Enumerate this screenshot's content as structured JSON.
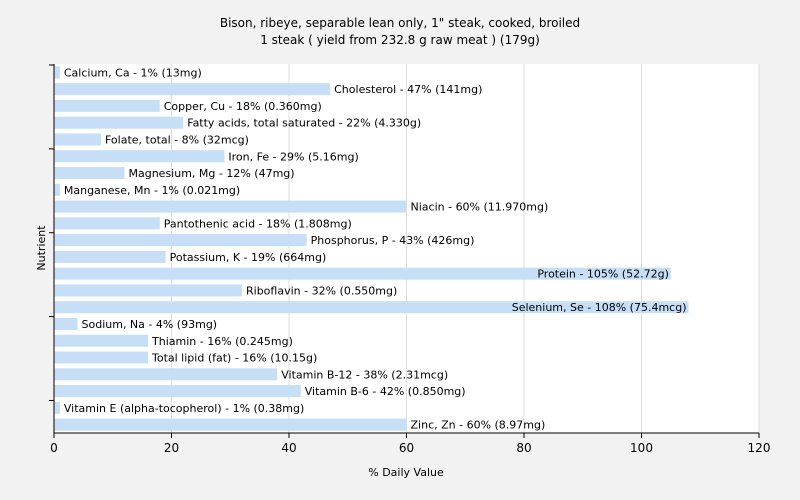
{
  "chart_data": {
    "type": "bar",
    "orientation": "horizontal",
    "title": "Bison, ribeye, separable lean only, 1\" steak, cooked, broiled",
    "subtitle": "1 steak ( yield from 232.8 g raw meat ) (179g)",
    "xlabel": "% Daily Value",
    "ylabel": "Nutrient",
    "xlim": [
      0,
      120
    ],
    "xticks": [
      "0",
      "20",
      "40",
      "60",
      "80",
      "100",
      "120"
    ],
    "grid": true,
    "bar_color": "#c6dff7",
    "categories": [
      "Calcium, Ca",
      "Cholesterol",
      "Copper, Cu",
      "Fatty acids, total saturated",
      "Folate, total",
      "Iron, Fe",
      "Magnesium, Mg",
      "Manganese, Mn",
      "Niacin",
      "Pantothenic acid",
      "Phosphorus, P",
      "Potassium, K",
      "Protein",
      "Riboflavin",
      "Selenium, Se",
      "Sodium, Na",
      "Thiamin",
      "Total lipid (fat)",
      "Vitamin B-12",
      "Vitamin B-6",
      "Vitamin E (alpha-tocopherol)",
      "Zinc, Zn"
    ],
    "values": [
      1,
      47,
      18,
      22,
      8,
      29,
      12,
      1,
      60,
      18,
      43,
      19,
      105,
      32,
      108,
      4,
      16,
      16,
      38,
      42,
      1,
      60
    ],
    "labels": [
      "Calcium, Ca - 1% (13mg)",
      "Cholesterol - 47% (141mg)",
      "Copper, Cu - 18% (0.360mg)",
      "Fatty acids, total saturated - 22% (4.330g)",
      "Folate, total - 8% (32mcg)",
      "Iron, Fe - 29% (5.16mg)",
      "Magnesium, Mg - 12% (47mg)",
      "Manganese, Mn - 1% (0.021mg)",
      "Niacin - 60% (11.970mg)",
      "Pantothenic acid - 18% (1.808mg)",
      "Phosphorus, P - 43% (426mg)",
      "Potassium, K - 19% (664mg)",
      "Protein - 105% (52.72g)",
      "Riboflavin - 32% (0.550mg)",
      "Selenium, Se - 108% (75.4mcg)",
      "Sodium, Na - 4% (93mg)",
      "Thiamin - 16% (0.245mg)",
      "Total lipid (fat) - 16% (10.15g)",
      "Vitamin B-12 - 38% (2.31mcg)",
      "Vitamin B-6 - 42% (0.850mg)",
      "Vitamin E (alpha-tocopherol) - 1% (0.38mg)",
      "Zinc, Zn - 60% (8.97mg)"
    ]
  }
}
